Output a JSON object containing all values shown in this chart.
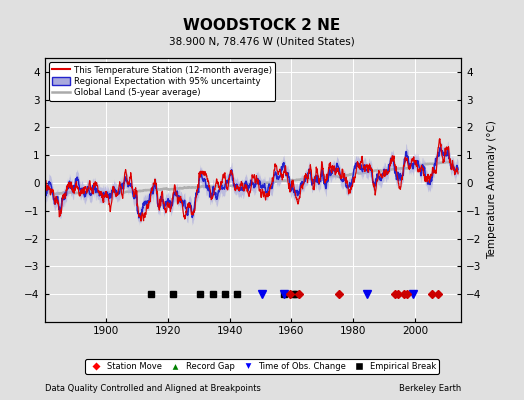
{
  "title": "WOODSTOCK 2 NE",
  "subtitle": "38.900 N, 78.476 W (United States)",
  "footer_left": "Data Quality Controlled and Aligned at Breakpoints",
  "footer_right": "Berkeley Earth",
  "ylabel": "Temperature Anomaly (°C)",
  "xlim": [
    1880,
    2015
  ],
  "ylim": [
    -5,
    4.5
  ],
  "yticks": [
    -4,
    -3,
    -2,
    -1,
    0,
    1,
    2,
    3,
    4
  ],
  "xticks": [
    1900,
    1920,
    1940,
    1960,
    1980,
    2000
  ],
  "bg_color": "#e0e0e0",
  "plot_bg_color": "#e0e0e0",
  "grid_color": "#ffffff",
  "station_color": "#dd0000",
  "regional_color": "#2222cc",
  "regional_fill": "#aaaadd",
  "global_color": "#aaaaaa",
  "legend_items": [
    "This Temperature Station (12-month average)",
    "Regional Expectation with 95% uncertainty",
    "Global Land (5-year average)"
  ],
  "marker_years_station_move": [
    1959.5,
    1962.5,
    1975.5,
    1993.5,
    1994.5,
    1996.5,
    1997.5,
    2005.5,
    2007.5
  ],
  "marker_years_record_gap": [],
  "marker_years_obs_change": [
    1950.5,
    1957.5,
    1984.5,
    1999.5
  ],
  "marker_years_empirical_break": [
    1914.5,
    1921.5,
    1930.5,
    1934.5,
    1938.5,
    1942.5,
    1957.5,
    1960.5,
    1961.5
  ],
  "marker_y": -4.0,
  "seed": 17
}
